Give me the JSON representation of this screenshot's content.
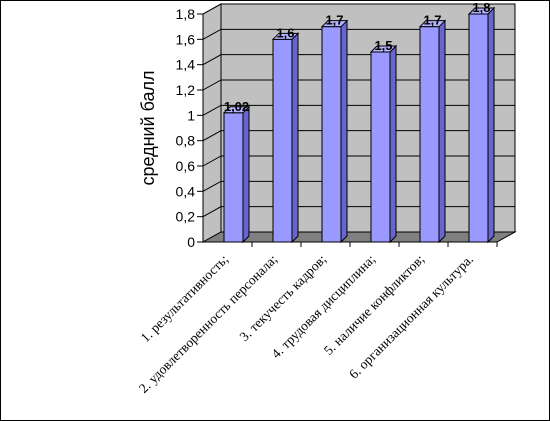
{
  "chart_data": {
    "type": "bar",
    "ylabel": "средний балл",
    "xlabel": "",
    "ylim": [
      0,
      1.8
    ],
    "yticks": [
      "0",
      "0,2",
      "0,4",
      "0,6",
      "0,8",
      "1",
      "1,2",
      "1,4",
      "1,6",
      "1,8"
    ],
    "grid": true,
    "style": "3d-column",
    "categories": [
      "1. результативность;",
      "2. удовлетворенность персонала;",
      "3. текучесть кадров;",
      "4. трудовая дисциплина;",
      "5. наличие конфликтов;",
      "6. организационная культура."
    ],
    "values": [
      1.02,
      1.6,
      1.7,
      1.5,
      1.7,
      1.8
    ],
    "data_labels": [
      "1,02",
      "1,6",
      "1,7",
      "1,5",
      "1,7",
      "1,8"
    ],
    "colors": {
      "bar_front": "#9999FF",
      "bar_side": "#6666CC",
      "bar_top": "#B3B3FF",
      "wall": "#C0C0C0",
      "floor": "#808080",
      "gridline": "#000000"
    }
  }
}
